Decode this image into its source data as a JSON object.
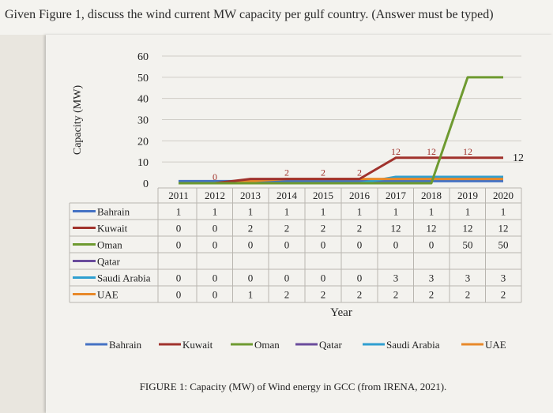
{
  "question": "Given Figure 1, discuss the wind current MW capacity per gulf country. (Answer must be typed)",
  "caption": "FIGURE 1: Capacity (MW) of Wind energy in GCC (from IRENA, 2021).",
  "chart_data": {
    "type": "line",
    "ylabel": "Capacity (MW)",
    "xlabel": "Year",
    "ylim": [
      0,
      60
    ],
    "yticks": [
      "0",
      "10",
      "20",
      "30",
      "40",
      "50",
      "60"
    ],
    "grid": true,
    "legend_position": "bottom",
    "x": [
      "2011",
      "2012",
      "2013",
      "2014",
      "2015",
      "2016",
      "2017",
      "2018",
      "2019",
      "2020"
    ],
    "series": [
      {
        "name": "Bahrain",
        "color": "#4472c4",
        "values": [
          1,
          1,
          1,
          1,
          1,
          1,
          1,
          1,
          1,
          1
        ],
        "table": [
          "1",
          "1",
          "1",
          "1",
          "1",
          "1",
          "1",
          "1",
          "1",
          "1"
        ]
      },
      {
        "name": "Kuwait",
        "color": "#a0322c",
        "values": [
          0,
          0,
          2,
          2,
          2,
          2,
          12,
          12,
          12,
          12
        ],
        "table": [
          "0",
          "0",
          "2",
          "2",
          "2",
          "2",
          "12",
          "12",
          "12",
          "12"
        ]
      },
      {
        "name": "Oman",
        "color": "#6e9a30",
        "values": [
          0,
          0,
          0,
          0,
          0,
          0,
          0,
          0,
          50,
          50
        ],
        "table": [
          "0",
          "0",
          "0",
          "0",
          "0",
          "0",
          "0",
          "0",
          "50",
          "50"
        ]
      },
      {
        "name": "Qatar",
        "color": "#6a4c9c",
        "values": [
          null,
          null,
          null,
          null,
          null,
          null,
          null,
          null,
          null,
          null
        ],
        "table": [
          "",
          "",
          "",
          "",
          "",
          "",
          "",
          "",
          "",
          ""
        ]
      },
      {
        "name": "Saudi Arabia",
        "color": "#2f9fd0",
        "values": [
          0,
          0,
          0,
          0,
          0,
          0,
          3,
          3,
          3,
          3
        ],
        "table": [
          "0",
          "0",
          "0",
          "0",
          "0",
          "0",
          "3",
          "3",
          "3",
          "3"
        ]
      },
      {
        "name": "UAE",
        "color": "#e8892a",
        "values": [
          0,
          0,
          1,
          2,
          2,
          2,
          2,
          2,
          2,
          2
        ],
        "table": [
          "0",
          "0",
          "1",
          "2",
          "2",
          "2",
          "2",
          "2",
          "2",
          "2"
        ]
      }
    ],
    "data_labels": [
      {
        "series": "Kuwait",
        "index": 1,
        "text": "0"
      },
      {
        "series": "Kuwait",
        "index": 3,
        "text": "2"
      },
      {
        "series": "Kuwait",
        "index": 4,
        "text": "2"
      },
      {
        "series": "Kuwait",
        "index": 5,
        "text": "2"
      },
      {
        "series": "Kuwait",
        "index": 6,
        "text": "12"
      },
      {
        "series": "Kuwait",
        "index": 7,
        "text": "12"
      },
      {
        "series": "Kuwait",
        "index": 8,
        "text": "12"
      },
      {
        "series": "Kuwait",
        "index": 9,
        "text": "12"
      }
    ]
  }
}
